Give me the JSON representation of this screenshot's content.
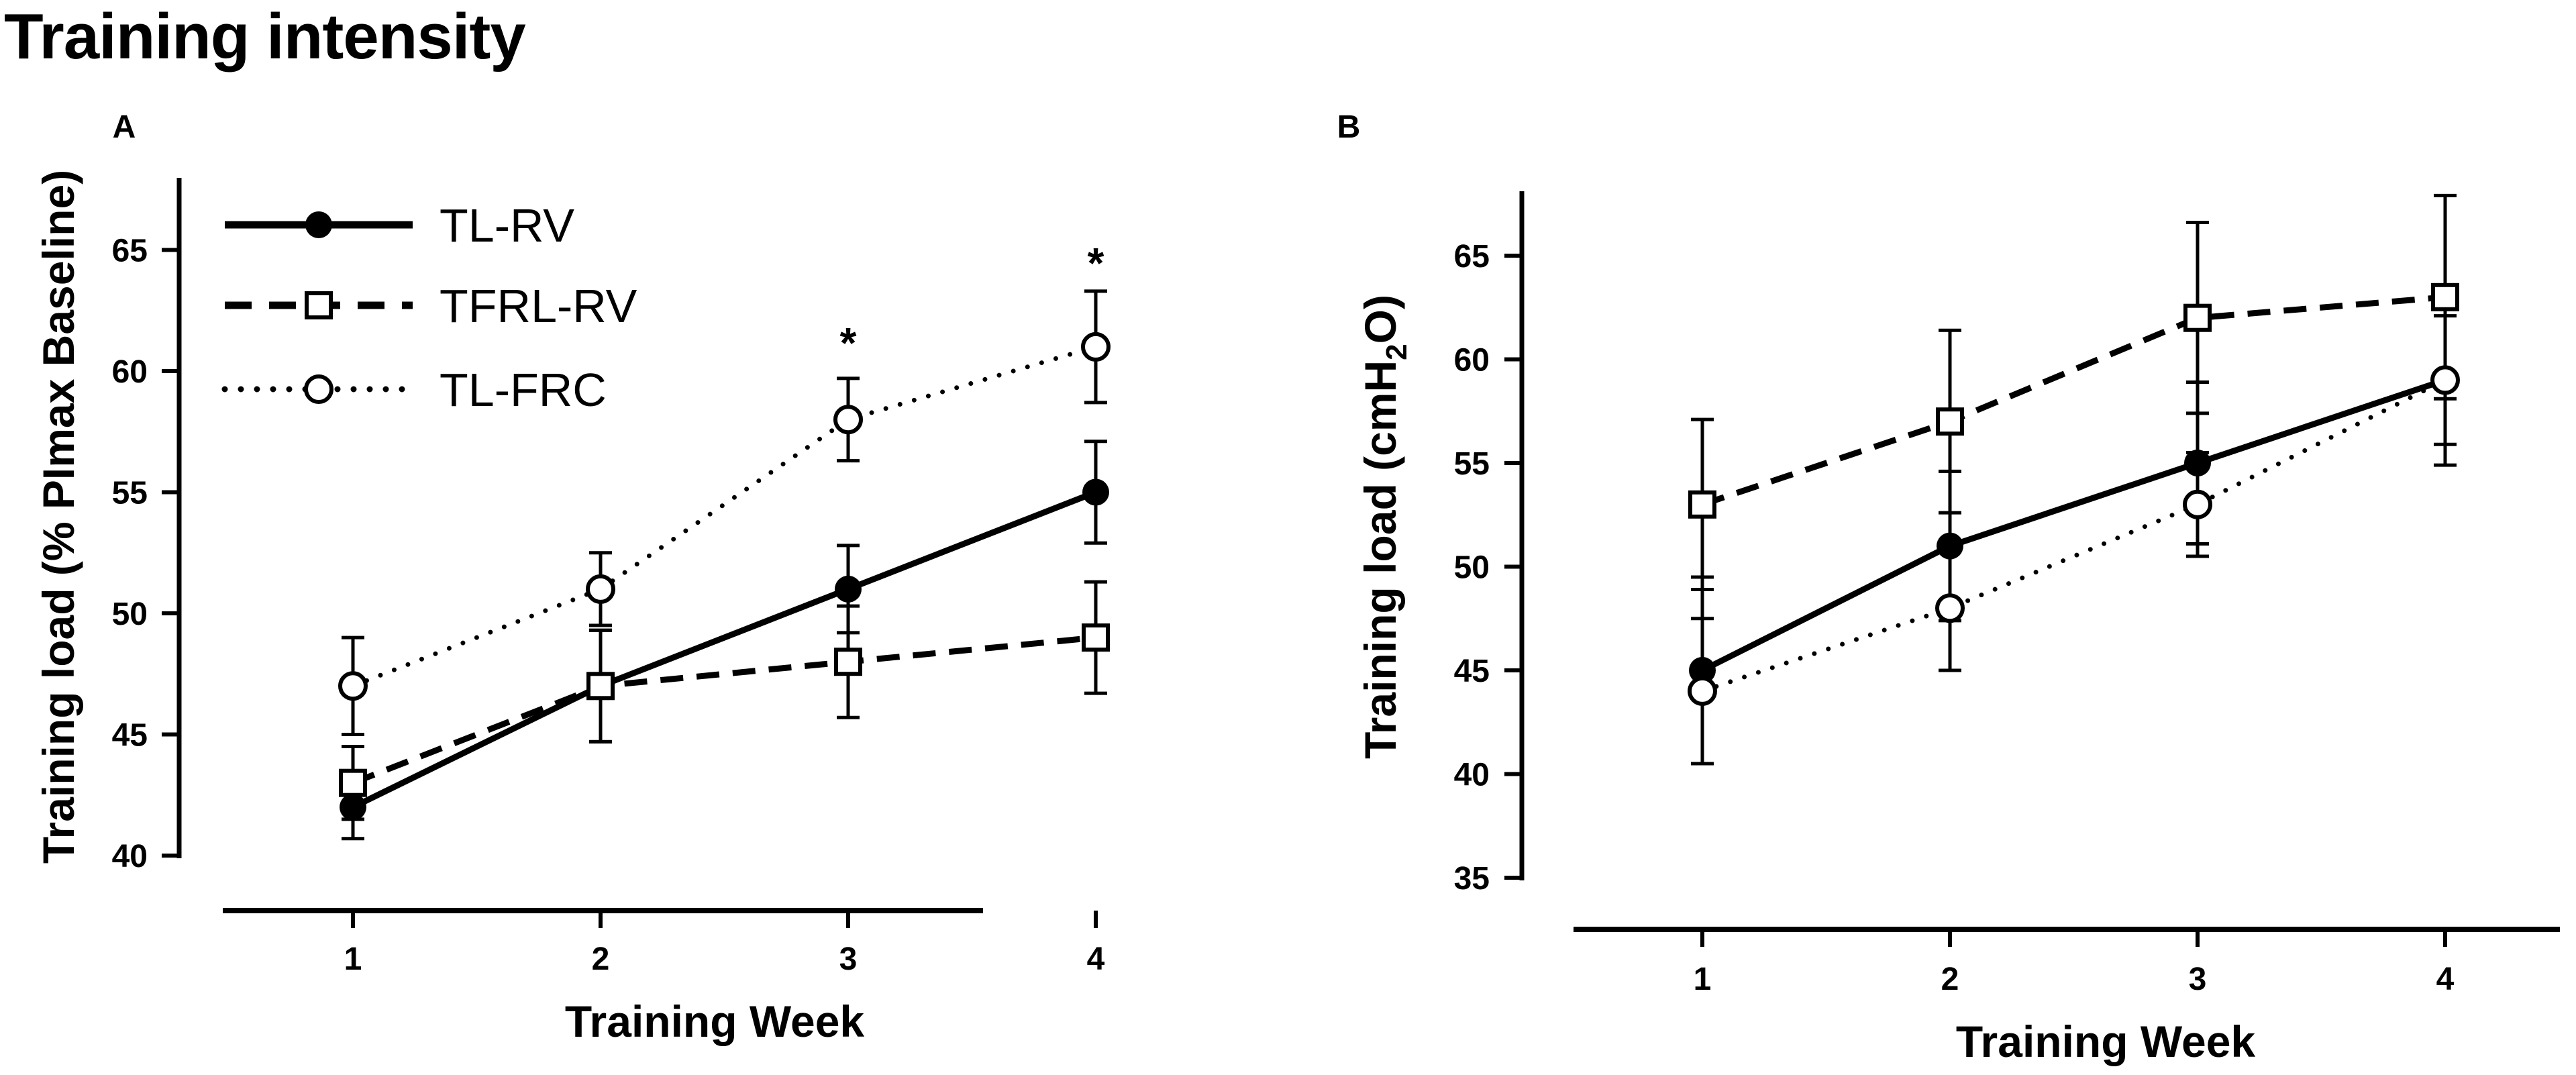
{
  "title": "Training intensity",
  "chart_data": [
    {
      "panel": "A",
      "type": "line",
      "xlabel": "Training Week",
      "ylabel": "Training load (% PImax Baseline)",
      "categories": [
        "1",
        "2",
        "3",
        "4"
      ],
      "x": [
        1,
        2,
        3,
        4
      ],
      "yticks": [
        40,
        45,
        50,
        55,
        60,
        65
      ],
      "ylim": [
        40,
        67
      ],
      "grid": false,
      "legend_position": "top-left",
      "series": [
        {
          "name": "TL-RV",
          "marker": "filled-circle",
          "line": "solid",
          "values": [
            42,
            47,
            51,
            55
          ],
          "errors": [
            1.3,
            2.3,
            1.8,
            2.1
          ]
        },
        {
          "name": "TFRL-RV",
          "marker": "open-square",
          "line": "dashed",
          "values": [
            43,
            47,
            48,
            49
          ],
          "errors": [
            1.5,
            2.3,
            2.3,
            2.3
          ]
        },
        {
          "name": "TL-FRC",
          "marker": "open-circle",
          "line": "dotted",
          "values": [
            47,
            51,
            58,
            61
          ],
          "errors": [
            2.0,
            1.5,
            1.7,
            2.3
          ]
        }
      ],
      "annotations": [
        {
          "x": 3,
          "y": 61.6,
          "text": "*"
        },
        {
          "x": 4,
          "y": 64.9,
          "text": "*"
        }
      ]
    },
    {
      "panel": "B",
      "type": "line",
      "xlabel": "Training Week",
      "ylabel_main": "Training load (cmH",
      "ylabel_sub": "2",
      "ylabel_end": "O)",
      "categories": [
        "1",
        "2",
        "3",
        "4"
      ],
      "x": [
        1,
        2,
        3,
        4
      ],
      "yticks": [
        35,
        40,
        45,
        50,
        55,
        60,
        65
      ],
      "ylim": [
        35,
        68
      ],
      "grid": false,
      "series": [
        {
          "name": "TL-RV",
          "marker": "filled-circle",
          "line": "solid",
          "values": [
            45,
            51,
            55,
            59
          ],
          "errors": [
            4.5,
            3.6,
            3.9,
            4.1
          ]
        },
        {
          "name": "TFRL-RV",
          "marker": "open-square",
          "line": "dashed",
          "values": [
            53,
            57,
            62,
            63
          ],
          "errors": [
            4.1,
            4.4,
            4.6,
            4.9
          ]
        },
        {
          "name": "TL-FRC",
          "marker": "open-circle",
          "line": "dotted",
          "values": [
            44,
            48,
            53,
            59
          ],
          "errors": [
            3.5,
            3.0,
            2.5,
            3.1
          ]
        }
      ]
    }
  ]
}
